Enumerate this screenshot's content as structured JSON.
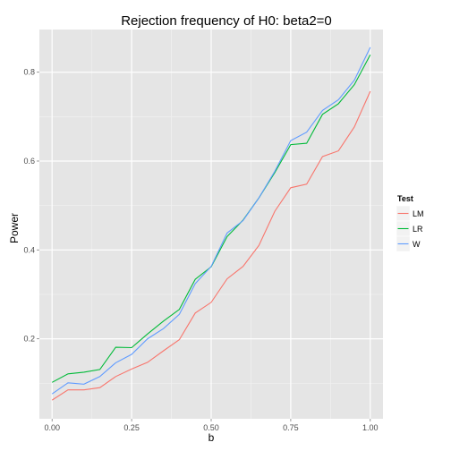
{
  "chart_data": {
    "type": "line",
    "title": "Rejection frequency of H0: beta2=0",
    "xlabel": "b",
    "ylabel": "Power",
    "xlim": [
      -0.04,
      1.04
    ],
    "ylim": [
      0.02,
      0.896
    ],
    "xticks": [
      0.0,
      0.25,
      0.5,
      0.75,
      1.0
    ],
    "xtick_labels": [
      "0.00",
      "0.25",
      "0.50",
      "0.75",
      "1.00"
    ],
    "yticks": [
      0.2,
      0.4,
      0.6,
      0.8
    ],
    "ytick_labels": [
      "0.2",
      "0.4",
      "0.6",
      "0.8"
    ],
    "grid": true,
    "legend_position": "right",
    "legend_title": "Test",
    "x": [
      0.0,
      0.05,
      0.1,
      0.15,
      0.2,
      0.25,
      0.3,
      0.35,
      0.4,
      0.45,
      0.5,
      0.55,
      0.6,
      0.65,
      0.7,
      0.75,
      0.8,
      0.85,
      0.9,
      0.95,
      1.0
    ],
    "series": [
      {
        "name": "LM",
        "color": "#F8766D",
        "values": [
          0.062,
          0.085,
          0.085,
          0.09,
          0.115,
          0.132,
          0.147,
          0.173,
          0.198,
          0.258,
          0.282,
          0.335,
          0.363,
          0.41,
          0.487,
          0.54,
          0.548,
          0.61,
          0.623,
          0.677,
          0.757
        ]
      },
      {
        "name": "LR",
        "color": "#00BA38",
        "values": [
          0.102,
          0.121,
          0.125,
          0.131,
          0.181,
          0.18,
          0.211,
          0.24,
          0.266,
          0.334,
          0.362,
          0.43,
          0.467,
          0.517,
          0.574,
          0.637,
          0.64,
          0.705,
          0.729,
          0.772,
          0.839
        ]
      },
      {
        "name": "W",
        "color": "#619CFF",
        "values": [
          0.076,
          0.101,
          0.098,
          0.115,
          0.146,
          0.165,
          0.2,
          0.223,
          0.255,
          0.324,
          0.363,
          0.438,
          0.466,
          0.517,
          0.577,
          0.646,
          0.665,
          0.714,
          0.738,
          0.782,
          0.856
        ]
      }
    ]
  }
}
